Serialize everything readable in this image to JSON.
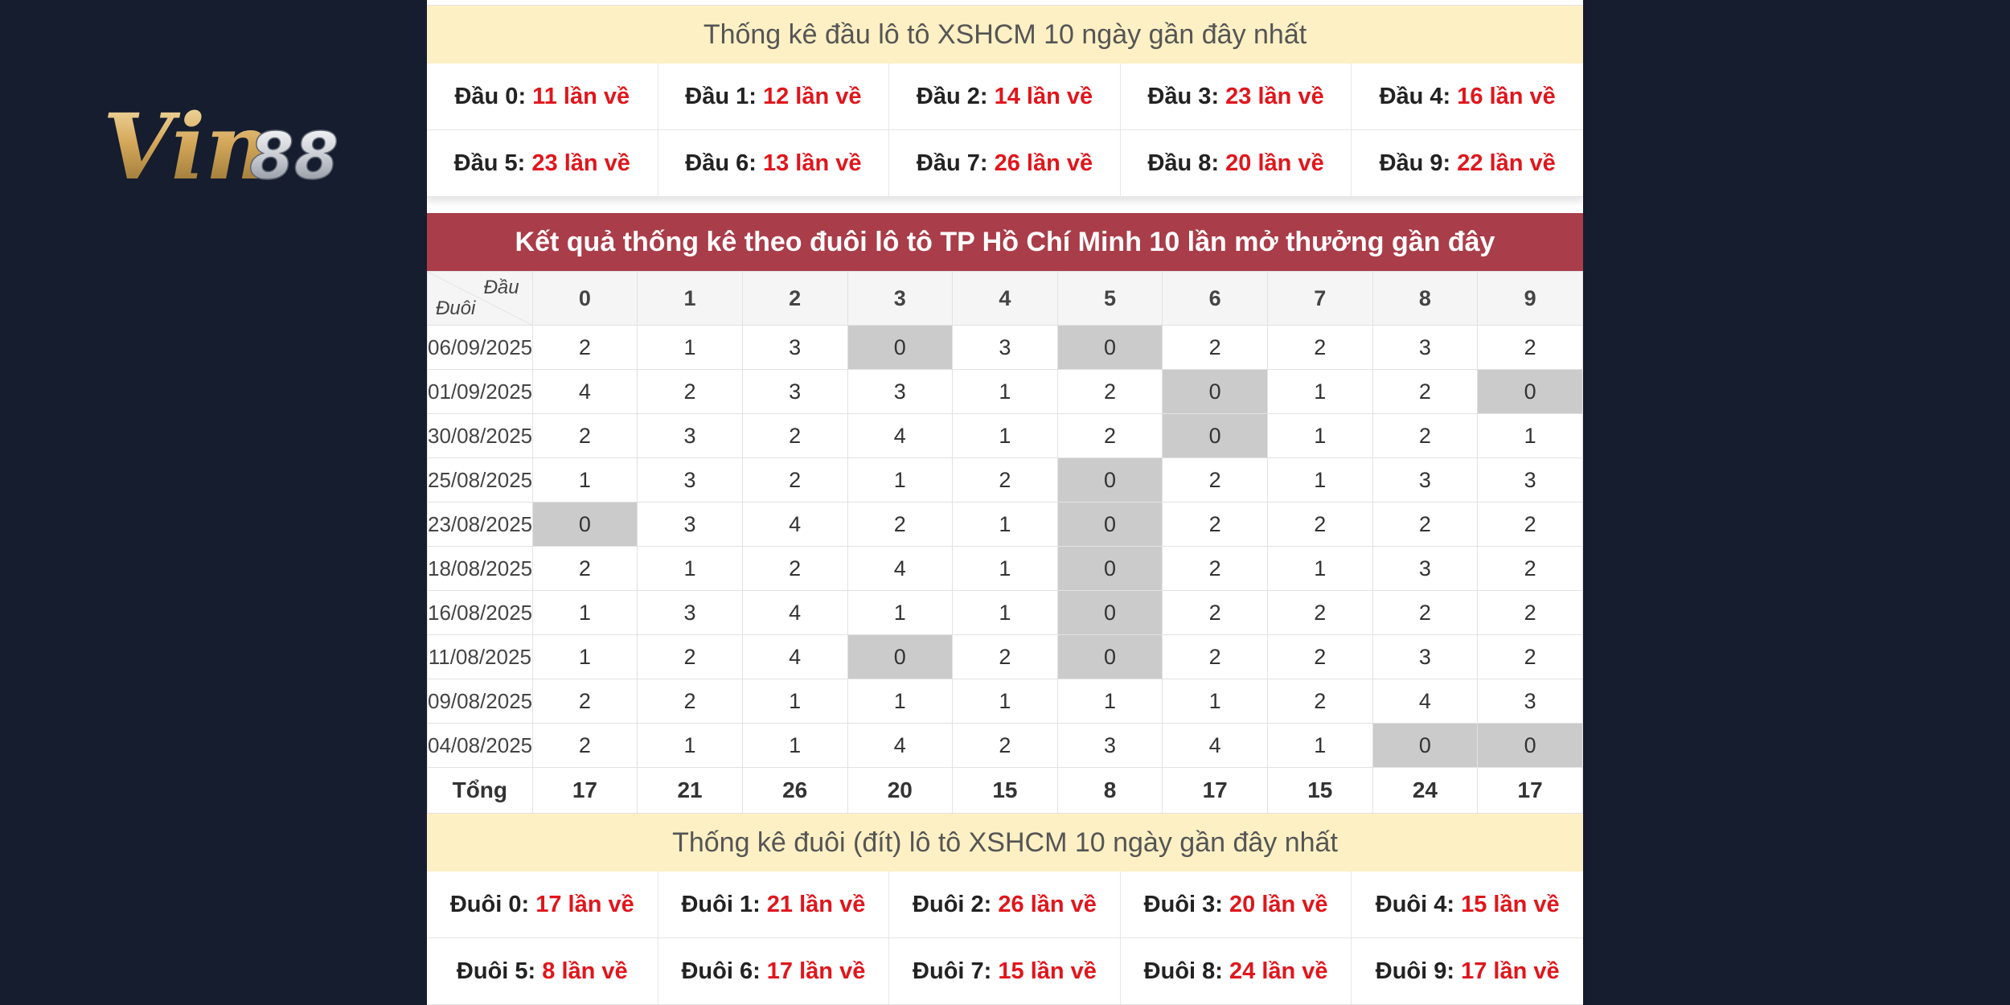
{
  "logo": {
    "text": "Vin88"
  },
  "head_stats": {
    "title": "Thống kê đầu lô tô XSHCM 10 ngày gần đây nhất",
    "items": [
      {
        "label": "Đầu 0:",
        "count": "11 lần về"
      },
      {
        "label": "Đầu 1:",
        "count": "12 lần về"
      },
      {
        "label": "Đầu 2:",
        "count": "14 lần về"
      },
      {
        "label": "Đầu 3:",
        "count": "23 lần về"
      },
      {
        "label": "Đầu 4:",
        "count": "16 lần về"
      },
      {
        "label": "Đầu 5:",
        "count": "23 lần về"
      },
      {
        "label": "Đầu 6:",
        "count": "13 lần về"
      },
      {
        "label": "Đầu 7:",
        "count": "26 lần về"
      },
      {
        "label": "Đầu 8:",
        "count": "20 lần về"
      },
      {
        "label": "Đầu 9:",
        "count": "22 lần về"
      }
    ]
  },
  "results": {
    "title": "Kết quả thống kê theo đuôi lô tô TP Hồ Chí Minh 10 lần mở thưởng gần đây",
    "corner_top": "Đầu",
    "corner_bottom": "Đuôi",
    "columns": [
      "0",
      "1",
      "2",
      "3",
      "4",
      "5",
      "6",
      "7",
      "8",
      "9"
    ],
    "rows": [
      {
        "date": "06/09/2025",
        "values": [
          "2",
          "1",
          "3",
          "0",
          "3",
          "0",
          "2",
          "2",
          "3",
          "2"
        ]
      },
      {
        "date": "01/09/2025",
        "values": [
          "4",
          "2",
          "3",
          "3",
          "1",
          "2",
          "0",
          "1",
          "2",
          "0"
        ]
      },
      {
        "date": "30/08/2025",
        "values": [
          "2",
          "3",
          "2",
          "4",
          "1",
          "2",
          "0",
          "1",
          "2",
          "1"
        ]
      },
      {
        "date": "25/08/2025",
        "values": [
          "1",
          "3",
          "2",
          "1",
          "2",
          "0",
          "2",
          "1",
          "3",
          "3"
        ]
      },
      {
        "date": "23/08/2025",
        "values": [
          "0",
          "3",
          "4",
          "2",
          "1",
          "0",
          "2",
          "2",
          "2",
          "2"
        ]
      },
      {
        "date": "18/08/2025",
        "values": [
          "2",
          "1",
          "2",
          "4",
          "1",
          "0",
          "2",
          "1",
          "3",
          "2"
        ]
      },
      {
        "date": "16/08/2025",
        "values": [
          "1",
          "3",
          "4",
          "1",
          "1",
          "0",
          "2",
          "2",
          "2",
          "2"
        ]
      },
      {
        "date": "11/08/2025",
        "values": [
          "1",
          "2",
          "4",
          "0",
          "2",
          "0",
          "2",
          "2",
          "3",
          "2"
        ]
      },
      {
        "date": "09/08/2025",
        "values": [
          "2",
          "2",
          "1",
          "1",
          "1",
          "1",
          "1",
          "2",
          "4",
          "3"
        ]
      },
      {
        "date": "04/08/2025",
        "values": [
          "2",
          "1",
          "1",
          "4",
          "2",
          "3",
          "4",
          "1",
          "0",
          "0"
        ]
      }
    ],
    "total_label": "Tổng",
    "totals": [
      "17",
      "21",
      "26",
      "20",
      "15",
      "8",
      "17",
      "15",
      "24",
      "17"
    ]
  },
  "tail_stats": {
    "title": "Thống kê đuôi (đít) lô tô XSHCM 10 ngày gần đây nhất",
    "items": [
      {
        "label": "Đuôi 0:",
        "count": "17 lần về"
      },
      {
        "label": "Đuôi 1:",
        "count": "21 lần về"
      },
      {
        "label": "Đuôi 2:",
        "count": "26 lần về"
      },
      {
        "label": "Đuôi 3:",
        "count": "20 lần về"
      },
      {
        "label": "Đuôi 4:",
        "count": "15 lần về"
      },
      {
        "label": "Đuôi 5:",
        "count": "8 lần về"
      },
      {
        "label": "Đuôi 6:",
        "count": "17 lần về"
      },
      {
        "label": "Đuôi 7:",
        "count": "15 lần về"
      },
      {
        "label": "Đuôi 8:",
        "count": "24 lần về"
      },
      {
        "label": "Đuôi 9:",
        "count": "17 lần về"
      }
    ]
  },
  "colors": {
    "background": "#151d2e",
    "title_bar_red": "#a93d49",
    "title_bar_yellow": "#fdf0c4",
    "count_red": "#e0161c",
    "zero_cell": "#cbcbcb"
  }
}
